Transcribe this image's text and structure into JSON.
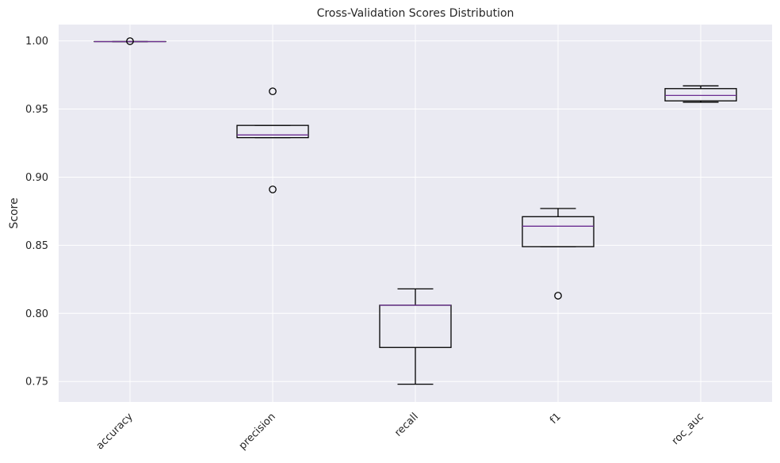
{
  "chart_data": {
    "type": "box",
    "title": "Cross-Validation Scores Distribution",
    "xlabel": "",
    "ylabel": "Score",
    "ylim": [
      0.735,
      1.012
    ],
    "yticks": [
      "0.75",
      "0.80",
      "0.85",
      "0.90",
      "0.95",
      "1.00"
    ],
    "grid": true,
    "categories": [
      "accuracy",
      "precision",
      "recall",
      "f1",
      "roc_auc"
    ],
    "boxes": [
      {
        "category": "accuracy",
        "whisker_low": 0.9995,
        "q1": 0.9995,
        "median": 0.9995,
        "q3": 0.9995,
        "whisker_high": 0.9995,
        "outliers": [
          0.9998
        ]
      },
      {
        "category": "precision",
        "whisker_low": 0.929,
        "q1": 0.929,
        "median": 0.931,
        "q3": 0.938,
        "whisker_high": 0.938,
        "outliers": [
          0.963,
          0.891
        ]
      },
      {
        "category": "recall",
        "whisker_low": 0.748,
        "q1": 0.775,
        "median": 0.806,
        "q3": 0.806,
        "whisker_high": 0.818,
        "outliers": []
      },
      {
        "category": "f1",
        "whisker_low": 0.849,
        "q1": 0.849,
        "median": 0.864,
        "q3": 0.871,
        "whisker_high": 0.877,
        "outliers": [
          0.813
        ]
      },
      {
        "category": "roc_auc",
        "whisker_low": 0.955,
        "q1": 0.956,
        "median": 0.96,
        "q3": 0.965,
        "whisker_high": 0.967,
        "outliers": []
      }
    ],
    "colors": {
      "plot_background": "#eaeaf2",
      "grid": "#ffffff",
      "box_line": "#000000",
      "median_line": "#6a2c91",
      "text": "#262626"
    }
  }
}
